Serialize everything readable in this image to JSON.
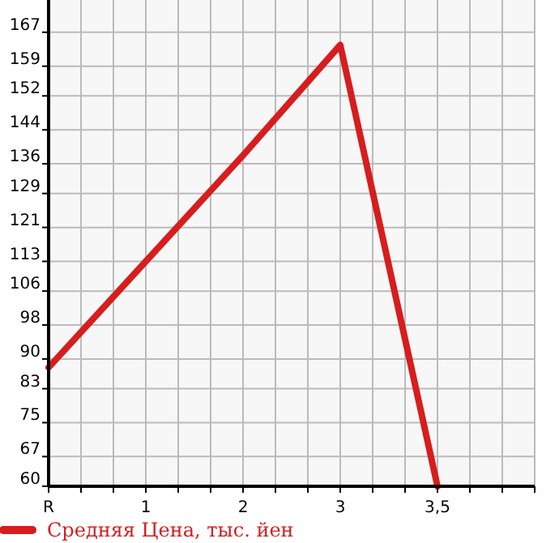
{
  "chart_data": {
    "type": "line",
    "categories": [
      "R",
      "1",
      "2",
      "3",
      "3,5",
      null
    ],
    "series": [
      {
        "name": "Средняя Цена, тыс. йен",
        "color": "#d71d1d",
        "values": [
          88,
          113,
          138,
          164,
          60,
          null
        ]
      }
    ],
    "ylim": [
      60,
      174.6
    ],
    "yticks": [
      60,
      67,
      75,
      83,
      90,
      98,
      106,
      113,
      121,
      129,
      136,
      144,
      152,
      159,
      167
    ],
    "grid": true,
    "legend": "bottom",
    "marker": "none",
    "line_style": "solid"
  }
}
